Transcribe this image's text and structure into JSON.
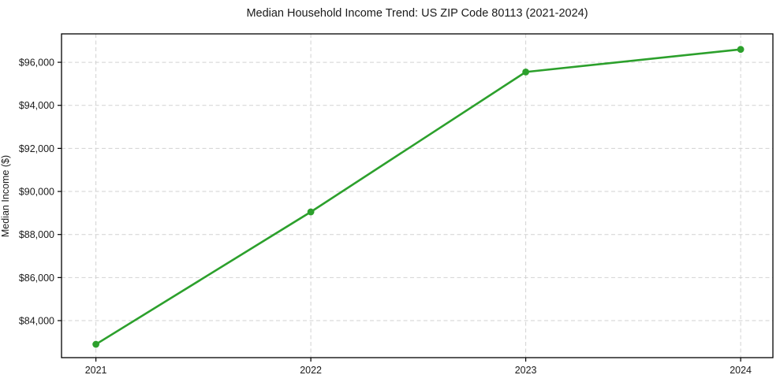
{
  "chart_data": {
    "type": "line",
    "title": "Median Household Income Trend: US ZIP Code 80113 (2021-2024)",
    "xlabel": "",
    "ylabel": "Median Income ($)",
    "x": [
      2021,
      2022,
      2023,
      2024
    ],
    "series": [
      {
        "name": "Median Household Income",
        "values": [
          82900,
          89050,
          95550,
          96600
        ]
      }
    ],
    "x_ticks": [
      {
        "v": 2021,
        "label": "2021"
      },
      {
        "v": 2022,
        "label": "2022"
      },
      {
        "v": 2023,
        "label": "2023"
      },
      {
        "v": 2024,
        "label": "2024"
      }
    ],
    "y_ticks": [
      {
        "v": 84000,
        "label": "$84,000"
      },
      {
        "v": 86000,
        "label": "$86,000"
      },
      {
        "v": 88000,
        "label": "$88,000"
      },
      {
        "v": 90000,
        "label": "$90,000"
      },
      {
        "v": 92000,
        "label": "$92,000"
      },
      {
        "v": 94000,
        "label": "$94,000"
      },
      {
        "v": 96000,
        "label": "$96,000"
      }
    ],
    "xlim": [
      2020.84,
      2024.15
    ],
    "ylim": [
      82280,
      97320
    ],
    "grid": "on",
    "grid_style": "dashed",
    "grid_color": "#d2d2d2",
    "line_color": "#2ca02c",
    "marker": "circle",
    "marker_color": "#2ca02c",
    "axis_color": "#000000",
    "background_color": "#ffffff",
    "legend": "none"
  }
}
